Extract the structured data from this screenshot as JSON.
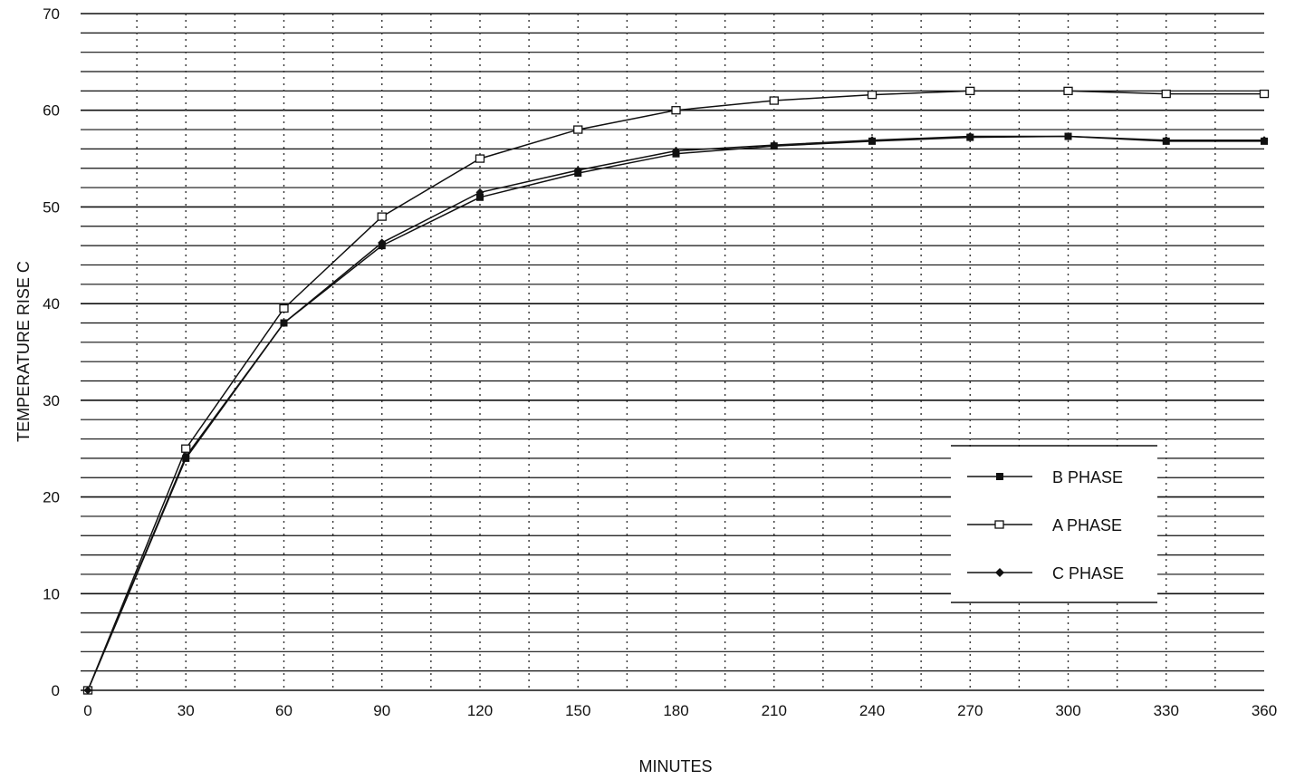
{
  "chart_data": {
    "type": "line",
    "title": "",
    "xlabel": "MINUTES",
    "ylabel": "TEMPERATURE RISE C",
    "x": [
      0,
      30,
      60,
      90,
      120,
      150,
      180,
      210,
      240,
      270,
      300,
      330,
      360
    ],
    "xlim": [
      0,
      360
    ],
    "ylim": [
      0,
      70
    ],
    "x_ticks": [
      "0",
      "30",
      "60",
      "90",
      "120",
      "150",
      "180",
      "210",
      "240",
      "270",
      "300",
      "330",
      "360"
    ],
    "y_ticks": [
      "0",
      "10",
      "20",
      "30",
      "40",
      "50",
      "60",
      "70"
    ],
    "grid": true,
    "legend_position": "lower-right",
    "series": [
      {
        "name": "B PHASE",
        "marker": "filled-square",
        "color": "#111111",
        "values": [
          0,
          24,
          38,
          46,
          51,
          53.5,
          55.5,
          56.3,
          56.8,
          57.2,
          57.3,
          56.8,
          56.8
        ]
      },
      {
        "name": "A PHASE",
        "marker": "open-square",
        "color": "#111111",
        "values": [
          0,
          25,
          39.5,
          49,
          55,
          58,
          60,
          61,
          61.6,
          62,
          62,
          61.7,
          61.7
        ]
      },
      {
        "name": "C PHASE",
        "marker": "diamond",
        "color": "#111111",
        "values": [
          0,
          24.2,
          38,
          46.3,
          51.5,
          53.8,
          55.8,
          56.4,
          56.9,
          57.3,
          57.3,
          56.9,
          56.9
        ]
      }
    ]
  }
}
